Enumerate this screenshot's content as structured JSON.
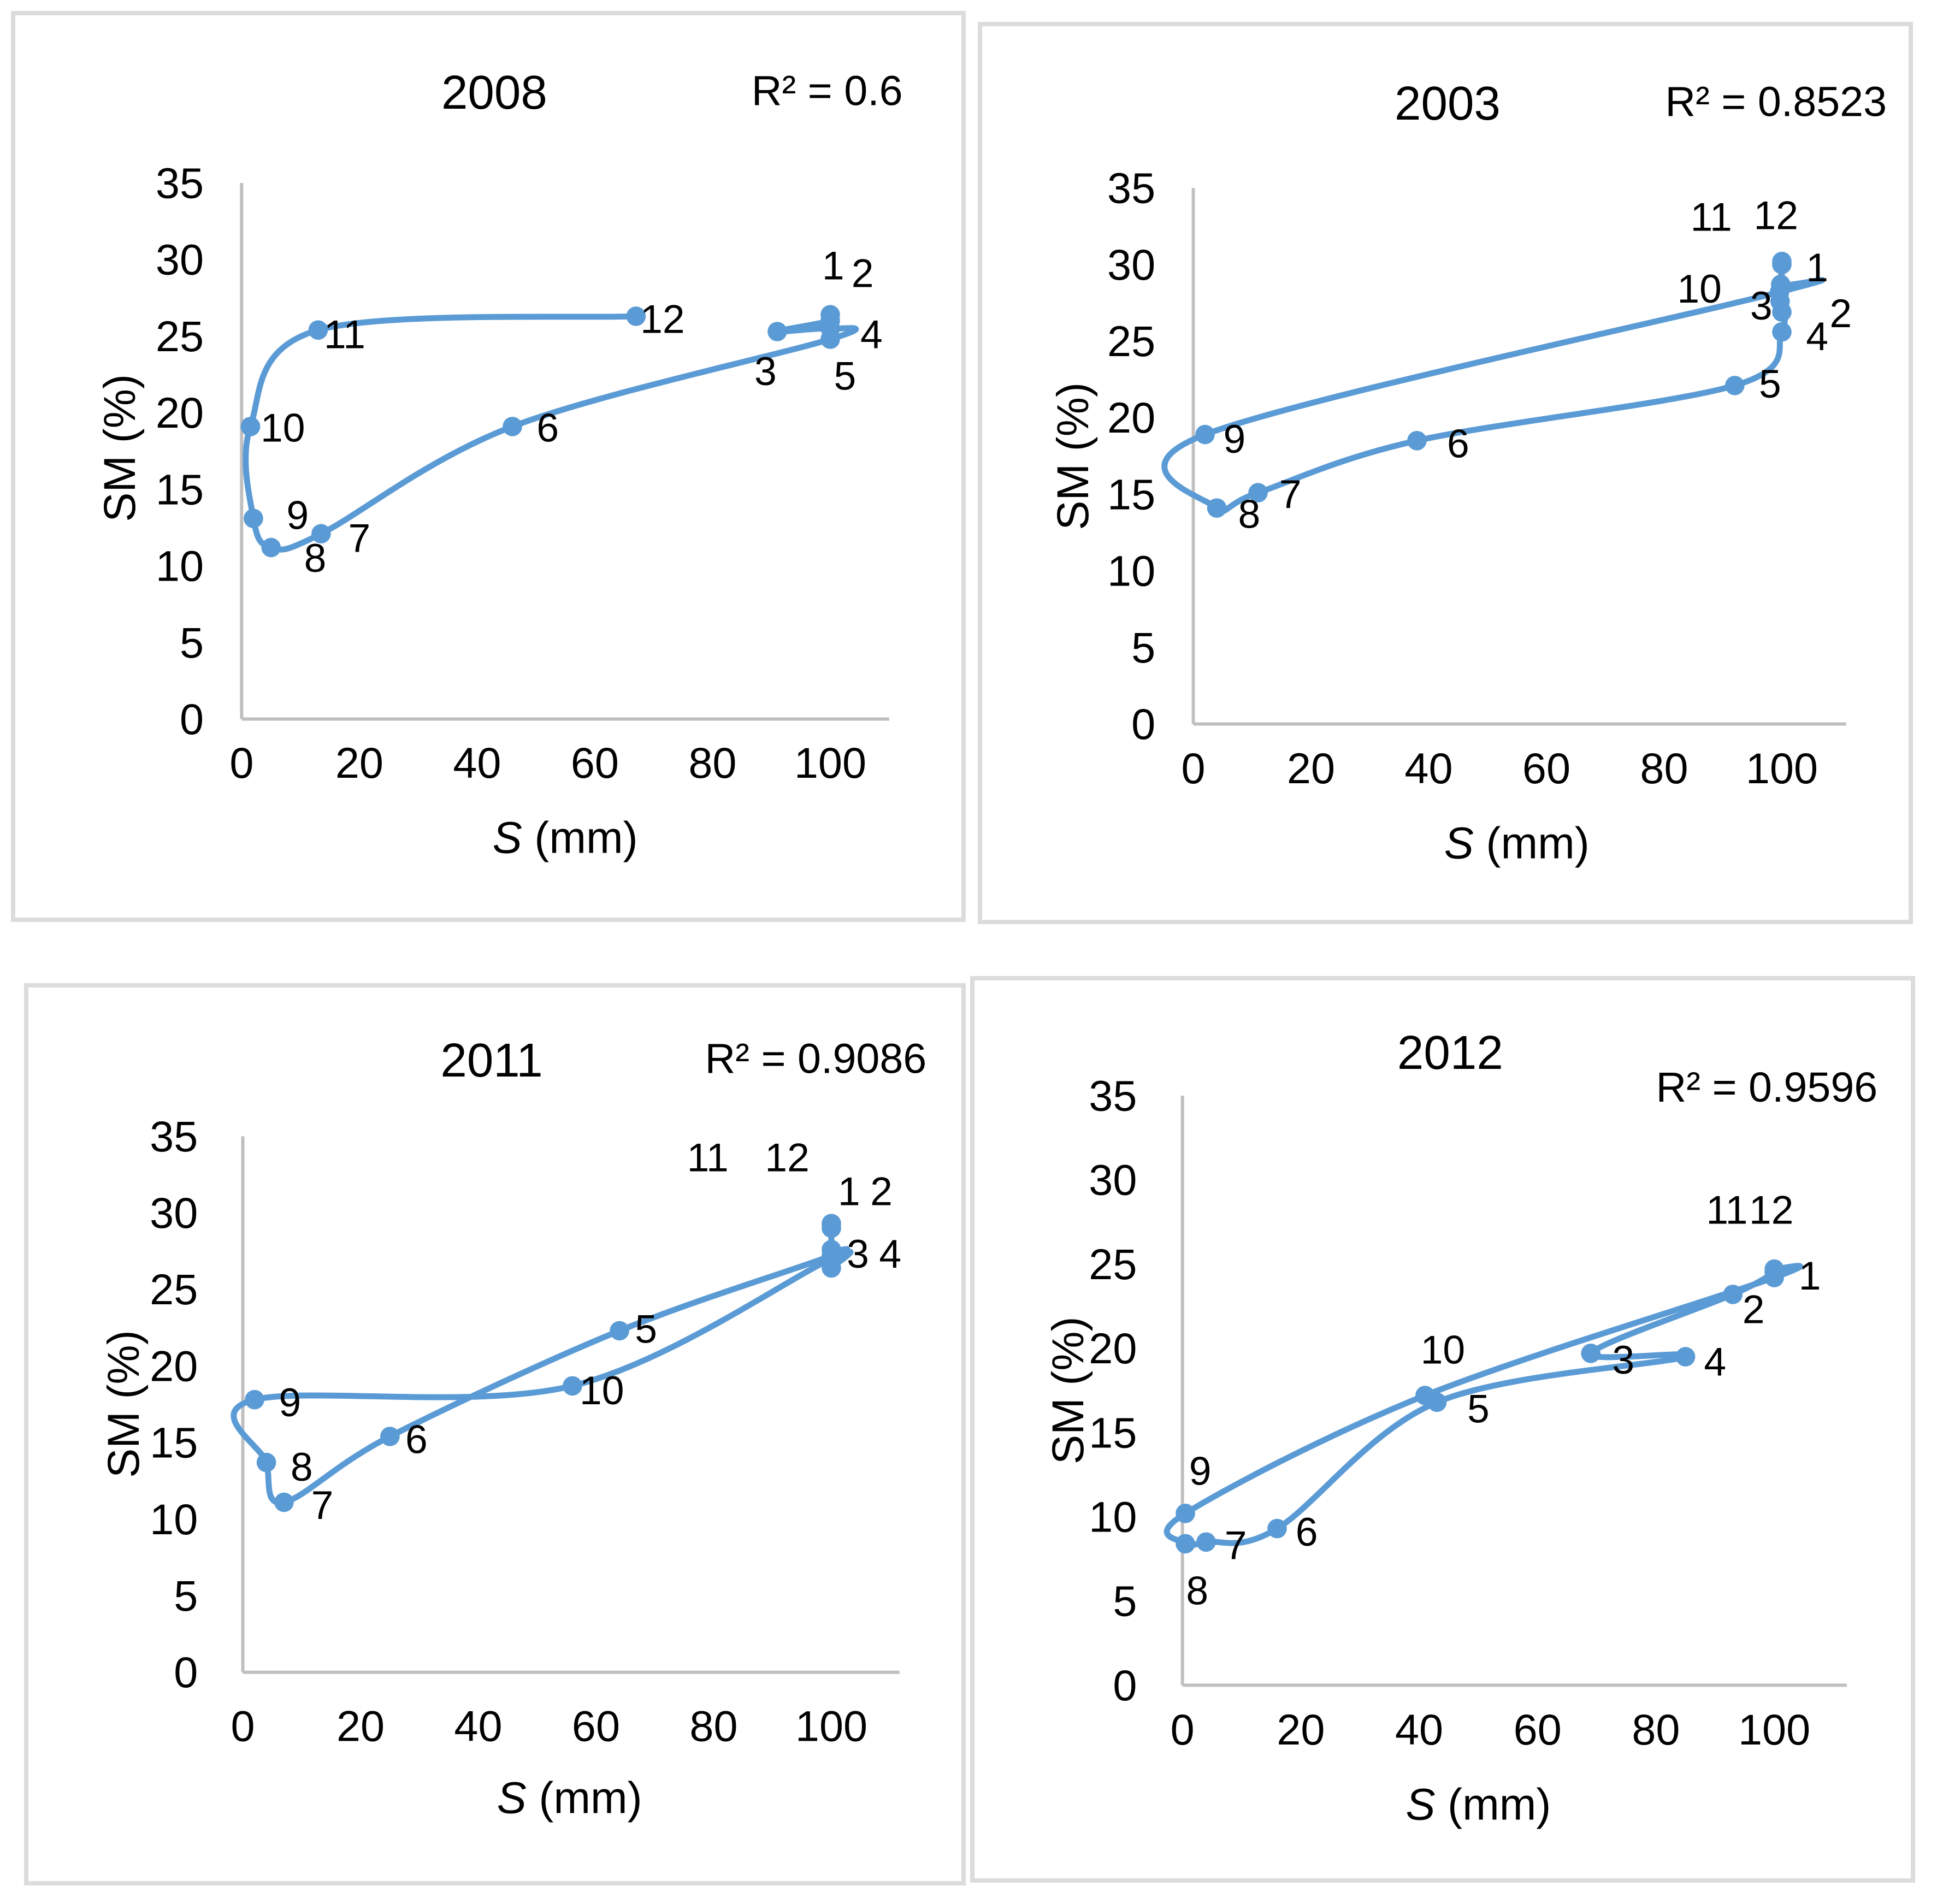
{
  "figure": {
    "background": "#ffffff",
    "panel_border_color": "#dcdcdc"
  },
  "colors": {
    "series_blue": "#5b9bd5",
    "axis_gray": "#bfbfbf",
    "text": "#000000"
  },
  "chart_data": [
    {
      "type": "line",
      "title": "2008",
      "r2_label": "R² = 0.6",
      "xlabel_italic": "S",
      "xlabel_rest": " (mm)",
      "ylabel": "SM (%)",
      "xlim": [
        0,
        110
      ],
      "ylim": [
        0,
        35
      ],
      "x_ticks": [
        0,
        20,
        40,
        60,
        80,
        100
      ],
      "y_ticks": [
        0,
        5,
        10,
        15,
        20,
        25,
        30,
        35
      ],
      "grid": false,
      "legend": "none",
      "smooth": true,
      "series": [
        {
          "points": [
            {
              "month": "1",
              "s": 100,
              "sm": 26.4,
              "lx": 100.5,
              "ly": 29.6
            },
            {
              "month": "2",
              "s": 100,
              "sm": 26.0,
              "lx": 105.5,
              "ly": 29.1
            },
            {
              "month": "3",
              "s": 91,
              "sm": 25.3,
              "lx": 89,
              "ly": 22.7
            },
            {
              "month": "4",
              "s": 100,
              "sm": 25.5,
              "lx": 107,
              "ly": 25.1
            },
            {
              "month": "5",
              "s": 100,
              "sm": 24.8,
              "lx": 102.5,
              "ly": 22.4
            },
            {
              "month": "6",
              "s": 46,
              "sm": 19.1,
              "lx": 52,
              "ly": 19.0
            },
            {
              "month": "7",
              "s": 13.5,
              "sm": 12.1,
              "lx": 20,
              "ly": 11.8
            },
            {
              "month": "8",
              "s": 5,
              "sm": 11.2,
              "lx": 12.5,
              "ly": 10.5
            },
            {
              "month": "9",
              "s": 2,
              "sm": 13.1,
              "lx": 9.5,
              "ly": 13.3
            },
            {
              "month": "10",
              "s": 1.5,
              "sm": 19.1,
              "lx": 7,
              "ly": 19.0
            },
            {
              "month": "11",
              "s": 13,
              "sm": 25.4,
              "lx": 17.5,
              "ly": 25.1
            },
            {
              "month": "12",
              "s": 67,
              "sm": 26.3,
              "lx": 71.5,
              "ly": 26.1
            }
          ]
        }
      ]
    },
    {
      "type": "line",
      "title": "2003",
      "r2_label": "R² = 0.8523",
      "xlabel_italic": "S",
      "xlabel_rest": " (mm)",
      "ylabel": "SM (%)",
      "xlim": [
        0,
        110
      ],
      "ylim": [
        0,
        35
      ],
      "x_ticks": [
        0,
        20,
        40,
        60,
        80,
        100
      ],
      "y_ticks": [
        0,
        5,
        10,
        15,
        20,
        25,
        30,
        35
      ],
      "grid": false,
      "legend": "none",
      "smooth": true,
      "series": [
        {
          "points": [
            {
              "month": "1",
              "s": 100,
              "sm": 30.0,
              "lx": 106,
              "ly": 29.8
            },
            {
              "month": "2",
              "s": 100,
              "sm": 26.9,
              "lx": 110,
              "ly": 26.8
            },
            {
              "month": "3",
              "s": 99.7,
              "sm": 27.6,
              "lx": 96.5,
              "ly": 27.3
            },
            {
              "month": "4",
              "s": 100,
              "sm": 25.6,
              "lx": 106,
              "ly": 25.3
            },
            {
              "month": "5",
              "s": 92,
              "sm": 22.1,
              "lx": 98,
              "ly": 22.2
            },
            {
              "month": "6",
              "s": 38,
              "sm": 18.5,
              "lx": 45,
              "ly": 18.3
            },
            {
              "month": "7",
              "s": 11,
              "sm": 15.1,
              "lx": 16.5,
              "ly": 15.0
            },
            {
              "month": "8",
              "s": 4,
              "sm": 14.1,
              "lx": 9.5,
              "ly": 13.7
            },
            {
              "month": "9",
              "s": 2,
              "sm": 18.9,
              "lx": 7,
              "ly": 18.6
            },
            {
              "month": "10",
              "s": 99.6,
              "sm": 28.2,
              "lx": 86,
              "ly": 28.4
            },
            {
              "month": "11",
              "s": 99.8,
              "sm": 28.7,
              "lx": 88,
              "ly": 33.1
            },
            {
              "month": "12",
              "s": 100,
              "sm": 30.2,
              "lx": 99,
              "ly": 33.2
            }
          ]
        }
      ]
    },
    {
      "type": "line",
      "title": "2011",
      "r2_label": "R² = 0.9086",
      "xlabel_italic": "S",
      "xlabel_rest": " (mm)",
      "ylabel": "SM (%)",
      "xlim": [
        0,
        110
      ],
      "ylim": [
        0,
        35
      ],
      "x_ticks": [
        0,
        20,
        40,
        60,
        80,
        100
      ],
      "y_ticks": [
        0,
        5,
        10,
        15,
        20,
        25,
        30,
        35
      ],
      "grid": false,
      "legend": "none",
      "smooth": true,
      "series": [
        {
          "points": [
            {
              "month": "1",
              "s": 100,
              "sm": 29.3,
              "lx": 103,
              "ly": 31.4
            },
            {
              "month": "2",
              "s": 100,
              "sm": 29.0,
              "lx": 108.5,
              "ly": 31.4
            },
            {
              "month": "3",
              "s": 100,
              "sm": 27.6,
              "lx": 104.5,
              "ly": 27.3
            },
            {
              "month": "4",
              "s": 100,
              "sm": 27.2,
              "lx": 110,
              "ly": 27.3
            },
            {
              "month": "5",
              "s": 64,
              "sm": 22.3,
              "lx": 68.5,
              "ly": 22.4
            },
            {
              "month": "6",
              "s": 25,
              "sm": 15.4,
              "lx": 29.5,
              "ly": 15.2
            },
            {
              "month": "7",
              "s": 7,
              "sm": 11.1,
              "lx": 13.5,
              "ly": 10.9
            },
            {
              "month": "8",
              "s": 4,
              "sm": 13.7,
              "lx": 10,
              "ly": 13.4
            },
            {
              "month": "9",
              "s": 2,
              "sm": 17.8,
              "lx": 8,
              "ly": 17.6
            },
            {
              "month": "10",
              "s": 56,
              "sm": 18.7,
              "lx": 61,
              "ly": 18.4
            },
            {
              "month": "11",
              "s": 100,
              "sm": 27.0,
              "lx": 79,
              "ly": 33.6
            },
            {
              "month": "12",
              "s": 100,
              "sm": 26.4,
              "lx": 92.5,
              "ly": 33.6
            }
          ]
        }
      ]
    },
    {
      "type": "line",
      "title": "2012",
      "r2_label": "R² = 0.9596",
      "xlabel_italic": "S",
      "xlabel_rest": " (mm)",
      "ylabel": "SM (%)",
      "xlim": [
        0,
        110
      ],
      "ylim": [
        0,
        35
      ],
      "x_ticks": [
        0,
        20,
        40,
        60,
        80,
        100
      ],
      "y_ticks": [
        0,
        5,
        10,
        15,
        20,
        25,
        30,
        35
      ],
      "grid": false,
      "legend": "none",
      "smooth": true,
      "series": [
        {
          "points": [
            {
              "month": "1",
              "s": 100,
              "sm": 24.5,
              "lx": 106,
              "ly": 24.3
            },
            {
              "month": "2",
              "s": 93,
              "sm": 23.2,
              "lx": 96.5,
              "ly": 22.3
            },
            {
              "month": "3",
              "s": 69,
              "sm": 19.7,
              "lx": 74.5,
              "ly": 19.3
            },
            {
              "month": "4",
              "s": 85,
              "sm": 19.5,
              "lx": 90,
              "ly": 19.2
            },
            {
              "month": "5",
              "s": 43,
              "sm": 16.8,
              "lx": 50,
              "ly": 16.4
            },
            {
              "month": "6",
              "s": 16,
              "sm": 9.3,
              "lx": 21,
              "ly": 9.1
            },
            {
              "month": "7",
              "s": 4,
              "sm": 8.5,
              "lx": 9,
              "ly": 8.3
            },
            {
              "month": "8",
              "s": 0.5,
              "sm": 8.4,
              "lx": 2.5,
              "ly": 5.6
            },
            {
              "month": "9",
              "s": 0.5,
              "sm": 10.2,
              "lx": 3,
              "ly": 12.7
            },
            {
              "month": "10",
              "s": 41,
              "sm": 17.2,
              "lx": 44,
              "ly": 19.9
            },
            {
              "month": "11",
              "s": 100,
              "sm": 24.2,
              "lx": 92,
              "ly": 28.2
            },
            {
              "month": "12",
              "s": 100,
              "sm": 24.7,
              "lx": 99.5,
              "ly": 28.2
            }
          ]
        }
      ]
    }
  ]
}
